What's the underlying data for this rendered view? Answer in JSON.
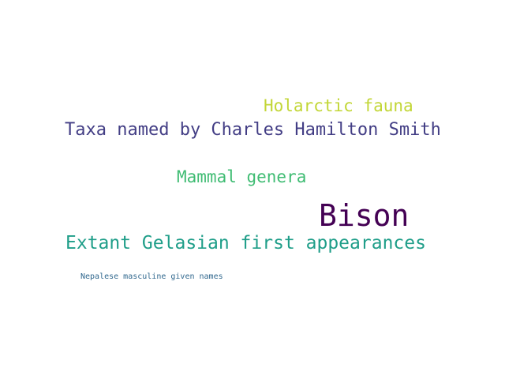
{
  "words": {
    "holarctic": {
      "text": "Holarctic fauna",
      "color": "#c2d636"
    },
    "taxa": {
      "text": "Taxa named by Charles Hamilton Smith",
      "color": "#433e85"
    },
    "mammal": {
      "text": "Mammal genera",
      "color": "#3fbc73"
    },
    "bison": {
      "text": "Bison",
      "color": "#440154"
    },
    "extant": {
      "text": "Extant Gelasian first appearances",
      "color": "#1f9e89"
    },
    "nepalese": {
      "text": "Nepalese masculine given names",
      "color": "#31688e"
    }
  }
}
